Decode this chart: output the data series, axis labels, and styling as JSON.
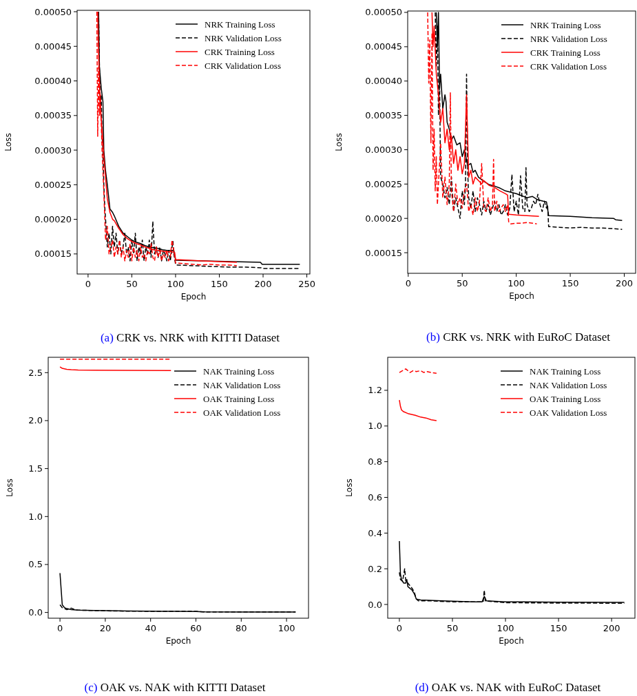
{
  "chart_data": [
    {
      "type": "line",
      "title": "(a) CRK vs. NRK with KITTI Dataset",
      "xlabel": "Epoch",
      "ylabel": "Loss",
      "xlim": [
        -12.5,
        253.5
      ],
      "ylim": [
        0.000121,
        0.000502
      ],
      "xticks": [
        0,
        50,
        100,
        150,
        200,
        250
      ],
      "yticks": [
        {
          "value": 0.00015,
          "label": "0.00015"
        },
        {
          "value": 0.0002,
          "label": "0.00020"
        },
        {
          "value": 0.00025,
          "label": "0.00025"
        },
        {
          "value": 0.0003,
          "label": "0.00030"
        },
        {
          "value": 0.00035,
          "label": "0.00035"
        },
        {
          "value": 0.0004,
          "label": "0.00040"
        },
        {
          "value": 0.00045,
          "label": "0.00045"
        },
        {
          "value": 0.0005,
          "label": "0.00050"
        }
      ],
      "legend": "top right",
      "grid": false,
      "series": [
        {
          "name": "NRK Training Loss",
          "color": "#000000",
          "line_style": "solid",
          "x": [
            12,
            13,
            15,
            17,
            18,
            20,
            22,
            25,
            28,
            30,
            35,
            40,
            45,
            50,
            55,
            60,
            65,
            70,
            75,
            80,
            85,
            90,
            95,
            98,
            100,
            197,
            199,
            242
          ],
          "values": [
            0.0005,
            0.00042,
            0.00039,
            0.00037,
            0.0003,
            0.00027,
            0.00025,
            0.000215,
            0.00021,
            0.000205,
            0.00019,
            0.00018,
            0.000175,
            0.00017,
            0.000167,
            0.000165,
            0.000162,
            0.00016,
            0.000159,
            0.000158,
            0.000156,
            0.000155,
            0.000155,
            0.000155,
            0.000141,
            0.000138,
            0.000135,
            0.000135
          ]
        },
        {
          "name": "NRK Validation Loss",
          "color": "#000000",
          "line_style": "dashed",
          "x": [
            12,
            13,
            14,
            15,
            16,
            17,
            18,
            19,
            20,
            22,
            24,
            26,
            28,
            30,
            32,
            34,
            36,
            38,
            40,
            42,
            44,
            46,
            48,
            50,
            52,
            54,
            56,
            58,
            60,
            62,
            64,
            66,
            68,
            70,
            72,
            74,
            76,
            78,
            80,
            82,
            84,
            86,
            88,
            90,
            92,
            94,
            96,
            97,
            98,
            100,
            101,
            120,
            140,
            160,
            180,
            198,
            200,
            220,
            242
          ],
          "values": [
            0.0005,
            0.00042,
            0.00036,
            0.00038,
            0.00032,
            0.0003,
            0.00025,
            0.00022,
            0.0002,
            0.00016,
            0.00018,
            0.00015,
            0.00019,
            0.00016,
            0.00018,
            0.00015,
            0.00017,
            0.00015,
            0.00016,
            0.00018,
            0.00015,
            0.00016,
            0.00014,
            0.00017,
            0.00015,
            0.00018,
            0.00014,
            0.00016,
            0.00015,
            0.00017,
            0.00014,
            0.00016,
            0.00015,
            0.00017,
            0.000145,
            0.000197,
            0.00015,
            0.00016,
            0.000145,
            0.00016,
            0.00014,
            0.000155,
            0.00015,
            0.00014,
            0.000155,
            0.00014,
            0.00016,
            0.000168,
            0.00015,
            0.000135,
            0.000134,
            0.000133,
            0.000132,
            0.000131,
            0.000131,
            0.00013,
            0.000129,
            0.000129,
            0.000129
          ]
        },
        {
          "name": "CRK Training Loss",
          "color": "#ff0000",
          "line_style": "solid",
          "x": [
            11,
            12,
            14,
            16,
            18,
            20,
            22,
            25,
            28,
            30,
            35,
            40,
            45,
            50,
            55,
            60,
            65,
            70,
            75,
            80,
            85,
            90,
            95,
            99,
            100,
            130,
            170
          ],
          "values": [
            0.0005,
            0.00044,
            0.00036,
            0.00033,
            0.00029,
            0.00026,
            0.00023,
            0.00021,
            0.0002,
            0.000198,
            0.000187,
            0.000178,
            0.000172,
            0.000168,
            0.000165,
            0.000163,
            0.00016,
            0.000158,
            0.000156,
            0.000155,
            0.000154,
            0.000153,
            0.000153,
            0.000152,
            0.000142,
            0.00014,
            0.000138
          ]
        },
        {
          "name": "CRK Validation Loss",
          "color": "#ff0000",
          "line_style": "dashed",
          "x": [
            10,
            11,
            12,
            13,
            14,
            16,
            18,
            20,
            22,
            24,
            26,
            28,
            30,
            32,
            34,
            36,
            38,
            40,
            42,
            44,
            46,
            48,
            50,
            52,
            54,
            56,
            58,
            60,
            62,
            64,
            66,
            68,
            70,
            72,
            74,
            76,
            78,
            80,
            82,
            84,
            86,
            88,
            90,
            92,
            94,
            96,
            98,
            100,
            110,
            120,
            130,
            140,
            150,
            160,
            170
          ],
          "values": [
            0.0005,
            0.00032,
            0.00042,
            0.00035,
            0.00038,
            0.0003,
            0.00024,
            0.00017,
            0.00019,
            0.00015,
            0.00016,
            0.00017,
            0.000145,
            0.00016,
            0.00015,
            0.00017,
            0.000145,
            0.00016,
            0.00014,
            0.000155,
            0.000145,
            0.000165,
            0.00014,
            0.00016,
            0.000145,
            0.000155,
            0.00014,
            0.00016,
            0.000145,
            0.00015,
            0.00014,
            0.000155,
            0.00015,
            0.000165,
            0.000145,
            0.00014,
            0.00016,
            0.000145,
            0.000155,
            0.00014,
            0.00015,
            0.000145,
            0.000155,
            0.00014,
            0.000145,
            0.00017,
            0.000155,
            0.000137,
            0.000136,
            0.000135,
            0.000134,
            0.000135,
            0.000134,
            0.000134,
            0.000133
          ]
        }
      ]
    },
    {
      "type": "line",
      "title": "(b) CRK vs. NRK with EuRoC Dataset",
      "xlabel": "Epoch",
      "ylabel": "Loss",
      "xlim": [
        -0.5,
        210.5
      ],
      "ylim": [
        0.00012,
        0.000502
      ],
      "xticks": [
        0,
        50,
        100,
        150,
        200
      ],
      "yticks": [
        {
          "value": 0.00015,
          "label": "0.00015"
        },
        {
          "value": 0.0002,
          "label": "0.00020"
        },
        {
          "value": 0.00025,
          "label": "0.00025"
        },
        {
          "value": 0.0003,
          "label": "0.00030"
        },
        {
          "value": 0.00035,
          "label": "0.00035"
        },
        {
          "value": 0.0004,
          "label": "0.00040"
        },
        {
          "value": 0.00045,
          "label": "0.00045"
        },
        {
          "value": 0.0005,
          "label": "0.00050"
        }
      ],
      "legend": "top right",
      "grid": false,
      "series": [
        {
          "name": "NRK Training Loss",
          "color": "#000000",
          "line_style": "solid",
          "x": [
            26,
            27,
            28,
            29,
            30,
            32,
            34,
            35,
            36,
            38,
            40,
            42,
            45,
            48,
            50,
            52,
            55,
            58,
            60,
            62,
            65,
            70,
            75,
            80,
            85,
            90,
            95,
            100,
            105,
            110,
            115,
            120,
            125,
            128,
            130,
            150,
            170,
            190,
            192,
            198
          ],
          "values": [
            0.0005,
            0.00045,
            0.0005,
            0.00039,
            0.00041,
            0.00036,
            0.00038,
            0.00037,
            0.00034,
            0.00033,
            0.000314,
            0.00032,
            0.000307,
            0.00031,
            0.00029,
            0.0003,
            0.000277,
            0.00028,
            0.000267,
            0.00027,
            0.00026,
            0.000254,
            0.000249,
            0.000247,
            0.000244,
            0.00024,
            0.000238,
            0.000236,
            0.000233,
            0.00023,
            0.000232,
            0.000227,
            0.000225,
            0.000224,
            0.000204,
            0.000203,
            0.000201,
            0.0002,
            0.000198,
            0.000197
          ]
        },
        {
          "name": "NRK Validation Loss",
          "color": "#000000",
          "line_style": "dashed",
          "x": [
            25,
            26,
            27,
            28,
            29,
            30,
            32,
            34,
            36,
            38,
            40,
            42,
            44,
            46,
            48,
            50,
            52,
            53,
            54,
            55,
            56,
            58,
            60,
            62,
            64,
            66,
            68,
            70,
            72,
            74,
            76,
            78,
            80,
            82,
            84,
            86,
            88,
            90,
            92,
            94,
            96,
            98,
            100,
            102,
            104,
            106,
            108,
            109,
            110,
            112,
            114,
            116,
            118,
            120,
            122,
            124,
            126,
            128,
            129,
            130,
            140,
            150,
            160,
            170,
            180,
            190,
            198
          ],
          "values": [
            0.0005,
            0.00042,
            0.00048,
            0.00035,
            0.0004,
            0.00026,
            0.00025,
            0.00023,
            0.000245,
            0.00022,
            0.00026,
            0.00021,
            0.00023,
            0.000215,
            0.0002,
            0.00024,
            0.00022,
            0.00025,
            0.00041,
            0.00027,
            0.00023,
            0.000215,
            0.00024,
            0.00021,
            0.00023,
            0.00022,
            0.000205,
            0.000225,
            0.00021,
            0.00022,
            0.000205,
            0.000215,
            0.000225,
            0.00021,
            0.00022,
            0.000205,
            0.00021,
            0.00022,
            0.000205,
            0.000215,
            0.000264,
            0.00021,
            0.000225,
            0.000205,
            0.000262,
            0.000215,
            0.00021,
            0.000274,
            0.00022,
            0.00021,
            0.000215,
            0.000225,
            0.00022,
            0.000235,
            0.00022,
            0.00021,
            0.000225,
            0.000215,
            0.00022,
            0.000188,
            0.000187,
            0.000186,
            0.000187,
            0.000186,
            0.000186,
            0.000185,
            0.000184
          ]
        },
        {
          "name": "CRK Training Loss",
          "color": "#ff0000",
          "line_style": "solid",
          "x": [
            22,
            23,
            24,
            26,
            28,
            30,
            32,
            34,
            36,
            38,
            40,
            42,
            44,
            46,
            48,
            50,
            52,
            54,
            56,
            58,
            60,
            62,
            65,
            68,
            70,
            75,
            80,
            85,
            90,
            92,
            93,
            100,
            110,
            121
          ],
          "values": [
            0.0005,
            0.00045,
            0.00048,
            0.00041,
            0.00038,
            0.00034,
            0.00036,
            0.00031,
            0.00033,
            0.0003,
            0.00032,
            0.00028,
            0.0003,
            0.00027,
            0.00029,
            0.000265,
            0.00028,
            0.00038,
            0.00026,
            0.00027,
            0.00025,
            0.00026,
            0.000255,
            0.00025,
            0.000255,
            0.000248,
            0.000245,
            0.00024,
            0.000236,
            0.000234,
            0.000206,
            0.000205,
            0.000204,
            0.000203
          ]
        },
        {
          "name": "CRK Validation Loss",
          "color": "#ff0000",
          "line_style": "dashed",
          "x": [
            18,
            19,
            20,
            21,
            22,
            23,
            24,
            25,
            26,
            27,
            28,
            30,
            32,
            34,
            36,
            38,
            39,
            40,
            42,
            44,
            46,
            48,
            50,
            52,
            54,
            56,
            58,
            60,
            62,
            64,
            66,
            68,
            70,
            72,
            74,
            76,
            78,
            79,
            80,
            82,
            84,
            86,
            88,
            90,
            92,
            93,
            95,
            100,
            105,
            110,
            115,
            119
          ],
          "values": [
            0.0005,
            0.000397,
            0.00046,
            0.00031,
            0.00047,
            0.00027,
            0.00033,
            0.00024,
            0.00029,
            0.00022,
            0.00025,
            0.00031,
            0.00023,
            0.00026,
            0.00022,
            0.00025,
            0.000383,
            0.00024,
            0.00021,
            0.00025,
            0.00022,
            0.00023,
            0.000215,
            0.00024,
            0.00025,
            0.00021,
            0.00022,
            0.000205,
            0.00023,
            0.00021,
            0.000225,
            0.00028,
            0.000215,
            0.00021,
            0.00023,
            0.00021,
            0.00022,
            0.000286,
            0.00021,
            0.000225,
            0.00021,
            0.000215,
            0.00022,
            0.00021,
            0.00022,
            0.000195,
            0.000192,
            0.000193,
            0.000193,
            0.000194,
            0.000193,
            0.000192
          ]
        }
      ]
    },
    {
      "type": "line",
      "title": "(c) OAK vs. NAK with KITTI Dataset",
      "xlabel": "Epoch",
      "ylabel": "Loss",
      "xlim": [
        -5.2,
        109.7
      ],
      "ylim": [
        -0.06,
        2.66
      ],
      "xticks": [
        0,
        20,
        40,
        60,
        80,
        100
      ],
      "yticks": [
        {
          "value": 0,
          "label": "0.0"
        },
        0.5,
        {
          "value": 1,
          "label": "1.0"
        },
        1.5,
        {
          "value": 2,
          "label": "2.0"
        },
        2.5
      ],
      "legend": "top right",
      "grid": false,
      "series": [
        {
          "name": "NAK Training Loss",
          "color": "#000000",
          "line_style": "solid",
          "x": [
            0,
            1,
            2,
            3,
            5,
            8,
            15,
            30,
            45,
            60,
            64,
            80,
            104
          ],
          "values": [
            0.41,
            0.08,
            0.05,
            0.04,
            0.03,
            0.025,
            0.02,
            0.015,
            0.012,
            0.01,
            0.006,
            0.005,
            0.005
          ]
        },
        {
          "name": "NAK Validation Loss",
          "color": "#000000",
          "line_style": "dashed",
          "x": [
            0,
            1,
            3,
            5,
            7,
            15,
            25,
            40,
            60,
            64,
            80,
            104
          ],
          "values": [
            0.08,
            0.05,
            0.03,
            0.045,
            0.025,
            0.02,
            0.015,
            0.012,
            0.012,
            0.004,
            0.004,
            0.004
          ]
        },
        {
          "name": "OAK Training Loss",
          "color": "#ff0000",
          "line_style": "solid",
          "x": [
            0,
            1,
            2,
            3,
            5,
            8,
            15,
            30,
            49
          ],
          "values": [
            2.56,
            2.545,
            2.54,
            2.535,
            2.53,
            2.527,
            2.525,
            2.523,
            2.522
          ]
        },
        {
          "name": "OAK Validation Loss",
          "color": "#ff0000",
          "line_style": "dashed",
          "x": [
            0,
            10,
            20,
            30,
            40,
            49
          ],
          "values": [
            2.64,
            2.64,
            2.64,
            2.64,
            2.64,
            2.64
          ]
        }
      ]
    },
    {
      "type": "line",
      "title": "(d) OAK vs. NAK with EuRoC Dataset",
      "xlabel": "Epoch",
      "ylabel": "Loss",
      "xlim": [
        -11,
        222
      ],
      "ylim": [
        -0.077,
        1.385
      ],
      "xticks": [
        0,
        50,
        100,
        150,
        200
      ],
      "yticks": [
        {
          "value": 0,
          "label": "0.0"
        },
        0.2,
        0.4,
        0.6,
        0.8,
        {
          "value": 1,
          "label": "1.0"
        },
        1.2
      ],
      "legend": "top right",
      "grid": false,
      "series": [
        {
          "name": "NAK Training Loss",
          "color": "#000000",
          "line_style": "solid",
          "x": [
            0,
            1,
            2,
            4,
            6,
            7,
            8,
            12,
            14,
            16,
            20,
            40,
            70,
            78,
            80,
            82,
            100,
            150,
            212
          ],
          "values": [
            0.355,
            0.17,
            0.14,
            0.12,
            0.12,
            0.14,
            0.1,
            0.08,
            0.06,
            0.03,
            0.025,
            0.02,
            0.015,
            0.015,
            0.045,
            0.02,
            0.015,
            0.013,
            0.012
          ]
        },
        {
          "name": "NAK Validation Loss",
          "color": "#000000",
          "line_style": "dashed",
          "x": [
            0,
            1,
            3,
            5,
            6,
            8,
            12,
            14,
            16,
            18,
            30,
            50,
            79,
            80,
            81,
            100,
            150,
            212
          ],
          "values": [
            0.18,
            0.14,
            0.13,
            0.2,
            0.13,
            0.12,
            0.09,
            0.07,
            0.03,
            0.02,
            0.02,
            0.015,
            0.015,
            0.08,
            0.02,
            0.01,
            0.008,
            0.007
          ]
        },
        {
          "name": "OAK Training Loss",
          "color": "#ff0000",
          "line_style": "solid",
          "x": [
            0,
            1,
            2,
            4,
            8,
            15,
            20,
            25,
            30,
            35
          ],
          "values": [
            1.145,
            1.11,
            1.09,
            1.08,
            1.07,
            1.06,
            1.05,
            1.045,
            1.035,
            1.03
          ]
        },
        {
          "name": "OAK Validation Loss",
          "color": "#ff0000",
          "line_style": "dashed",
          "x": [
            0,
            3,
            6,
            8,
            10,
            13,
            16,
            20,
            23,
            26,
            30,
            35
          ],
          "values": [
            1.3,
            1.31,
            1.32,
            1.31,
            1.3,
            1.31,
            1.305,
            1.31,
            1.3,
            1.305,
            1.3,
            1.295
          ]
        }
      ]
    }
  ]
}
